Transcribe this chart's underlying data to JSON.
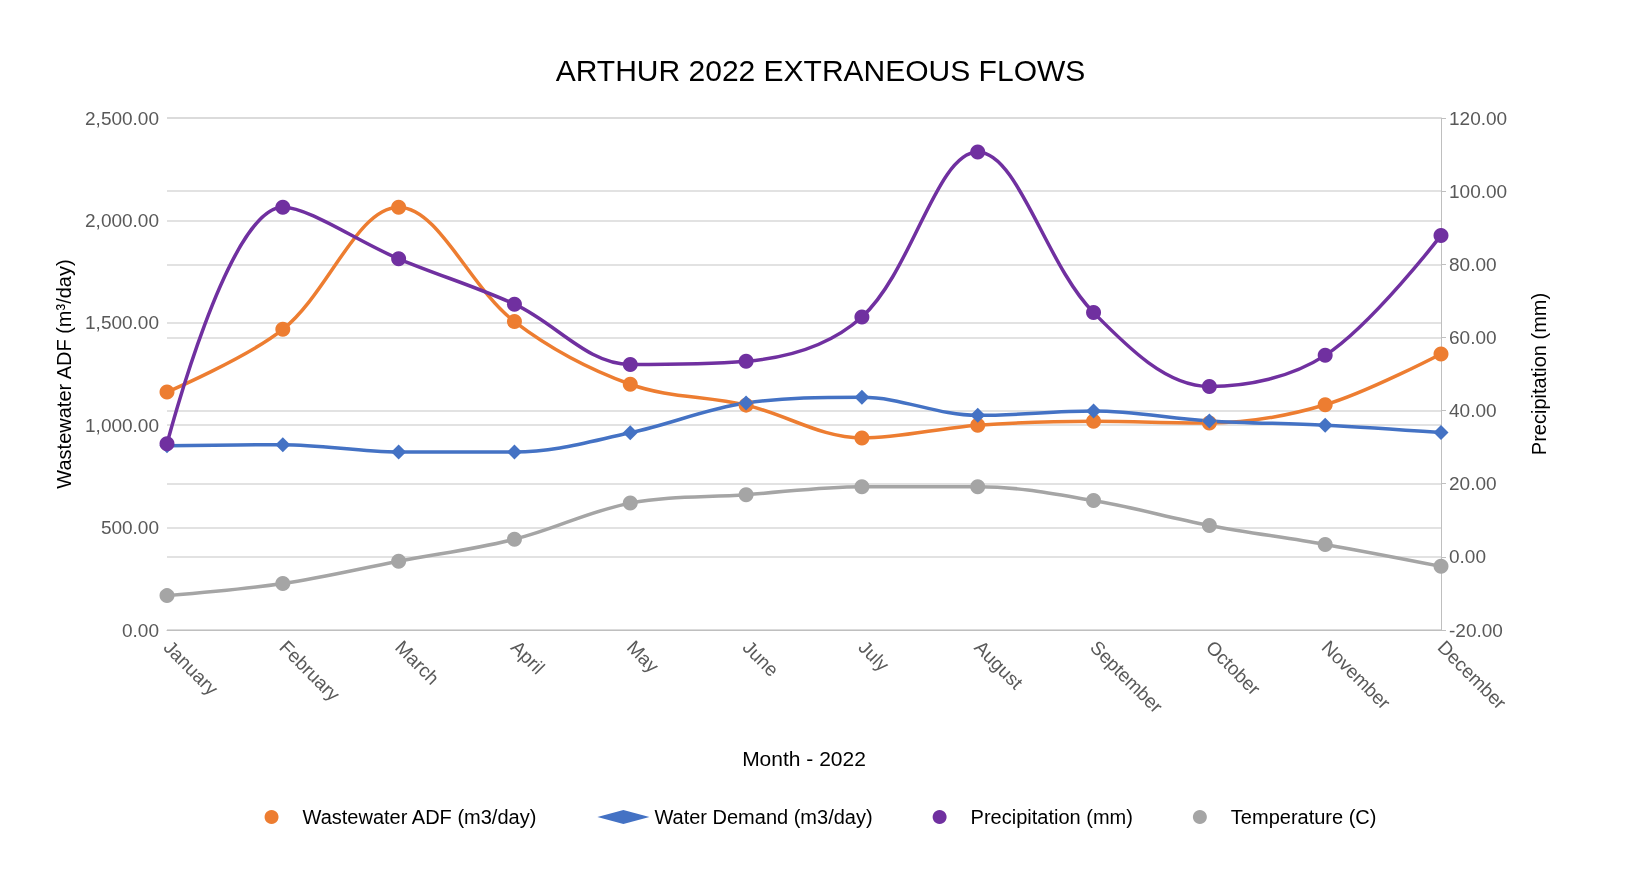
{
  "chart_data": {
    "type": "line",
    "title": "ARTHUR 2022 EXTRANEOUS FLOWS",
    "xlabel": "Month - 2022",
    "ylabel": "Wastewater ADF (m³/day)",
    "y2label": "Precipitation (mm)",
    "categories": [
      "January",
      "February",
      "March",
      "April",
      "May",
      "June",
      "July",
      "August",
      "September",
      "October",
      "November",
      "December"
    ],
    "series": [
      {
        "name": "Wastewater ADF (m3/day)",
        "color": "#ed7d31",
        "marker": "circle",
        "values": [
          1162,
          1468,
          2064,
          1506,
          1200,
          1098,
          938,
          1000,
          1019,
          1011,
          1100,
          1348
        ]
      },
      {
        "name": "Water Demand (m3/day)",
        "color": "#4472c4",
        "marker": "diamond",
        "values": [
          900,
          905,
          869,
          869,
          963,
          1108,
          1136,
          1048,
          1069,
          1021,
          1000,
          964
        ]
      },
      {
        "name": "Precipitation (mm)",
        "color": "#7030a0",
        "marker": "circle",
        "axis": "y2",
        "values": [
          30.9,
          95.6,
          81.5,
          69.1,
          52.6,
          53.5,
          65.6,
          110.7,
          66.8,
          46.6,
          55.1,
          87.9
        ]
      },
      {
        "name": "Temperature (C)",
        "color": "#a5a5a5",
        "marker": "circle",
        "axis": "y2",
        "values": [
          -10.6,
          -7.3,
          -1.2,
          4.8,
          14.7,
          17.0,
          19.2,
          19.2,
          15.4,
          8.6,
          3.4,
          -2.6
        ]
      }
    ],
    "ylim": [
      0,
      2500
    ],
    "yticks": [
      {
        "value": 0,
        "label": "0.00"
      },
      {
        "value": 500,
        "label": "500.00"
      },
      {
        "value": 1000,
        "label": "1,000.00"
      },
      {
        "value": 1500,
        "label": "1,500.00"
      },
      {
        "value": 2000,
        "label": "2,000.00"
      },
      {
        "value": 2500,
        "label": "2,500.00"
      }
    ],
    "y2lim": [
      -20,
      120
    ],
    "y2ticks": [
      {
        "value": -20,
        "label": "-20.00"
      },
      {
        "value": 0,
        "label": "0.00"
      },
      {
        "value": 20,
        "label": "20.00"
      },
      {
        "value": 40,
        "label": "40.00"
      },
      {
        "value": 60,
        "label": "60.00"
      },
      {
        "value": 80,
        "label": "80.00"
      },
      {
        "value": 100,
        "label": "100.00"
      },
      {
        "value": 120,
        "label": "120.00"
      }
    ],
    "grid": "y",
    "legend": "bottom",
    "line_style": "solid"
  }
}
